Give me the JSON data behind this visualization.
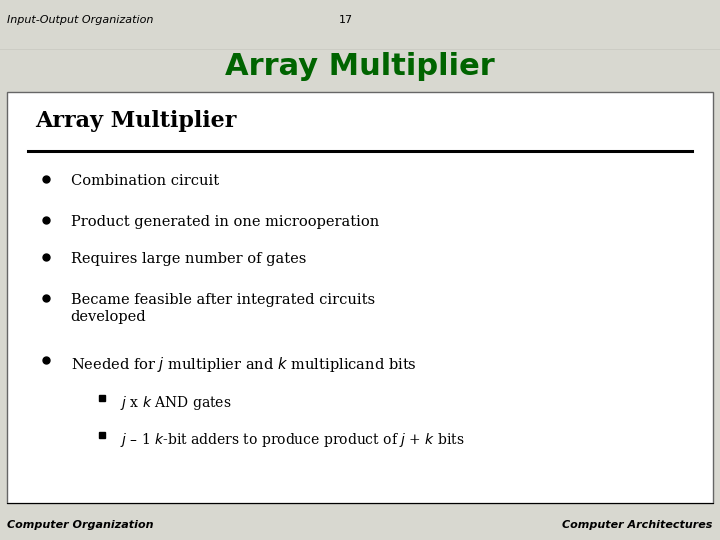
{
  "header_left": "Input-Output Organization",
  "header_center": "17",
  "header_title": "Array Multiplier",
  "slide_title": "Array Multiplier",
  "footer_left": "Computer Organization",
  "footer_right": "Computer Architectures",
  "outer_bg": "#d8d8d0",
  "header_small_color": "#000000",
  "header_title_color": "#006400",
  "body_bg": "#ffffff",
  "slide_title_color": "#000000",
  "body_text_color": "#000000",
  "bullet_items": [
    "Combination circuit",
    "Product generated in one microoperation",
    "Requires large number of gates",
    "Became feasible after integrated circuits\ndeveloped",
    "Needed for $j$ multiplier and $k$ multiplicand bits"
  ],
  "sub_bullets": [
    "$j$ x $k$ AND gates",
    "$j$ – 1 $k$-bit adders to produce product of $j$ + $k$ bits"
  ],
  "thick_bar_color": "#000000"
}
